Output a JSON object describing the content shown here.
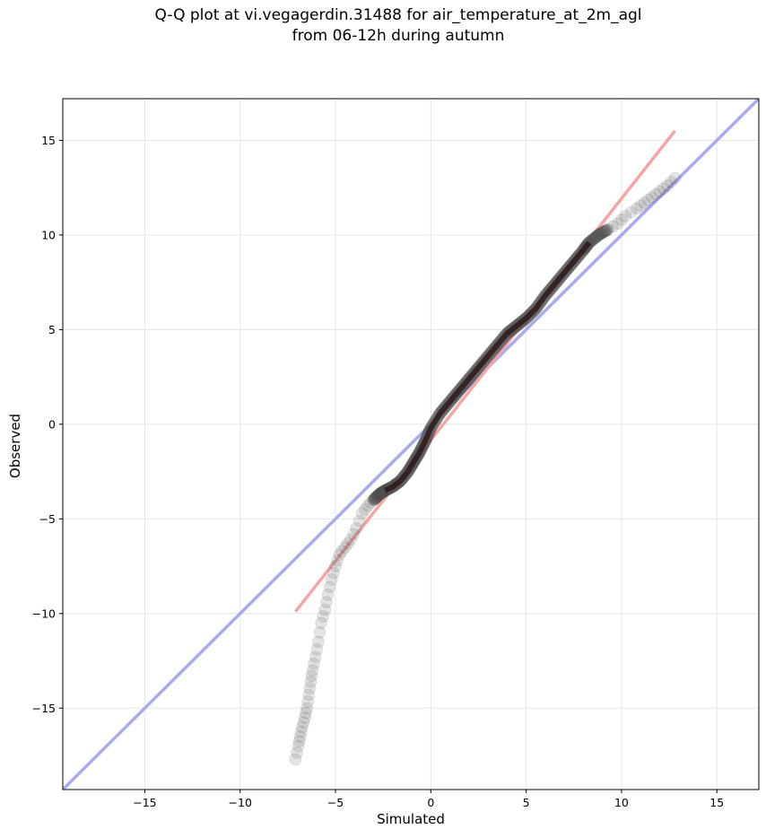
{
  "title_line1": "Q-Q plot at vi.vegagerdin.31488 for air_temperature_at_2m_agl",
  "title_line2": "from 06-12h during autumn",
  "chart_data": {
    "type": "scatter",
    "xlabel": "Simulated",
    "ylabel": "Observed",
    "xlim": [
      -19.3,
      17.2
    ],
    "ylim": [
      -19.3,
      17.2
    ],
    "xticks": [
      -15,
      -10,
      -5,
      0,
      5,
      10,
      15
    ],
    "yticks": [
      -15,
      -10,
      -5,
      0,
      5,
      10,
      15
    ],
    "xtick_labels": [
      "−15",
      "−10",
      "−5",
      "0",
      "5",
      "10",
      "15"
    ],
    "ytick_labels": [
      "−15",
      "−10",
      "−5",
      "0",
      "5",
      "10",
      "15"
    ],
    "grid": true,
    "reference_line": {
      "x": [
        -19.3,
        17.2
      ],
      "y": [
        -19.3,
        17.2
      ],
      "color": "#aaaaf2"
    },
    "fit_line": {
      "x": [
        -7.1,
        12.8
      ],
      "y": [
        -9.9,
        15.5
      ],
      "color": "#f4a6a6"
    },
    "quantile_curve": {
      "x": [
        -7.1,
        -6.95,
        -6.85,
        -6.75,
        -6.6,
        -6.5,
        -6.4,
        -6.3,
        -6.2,
        -6.05,
        -5.9,
        -5.75,
        -5.55,
        -5.4,
        -5.2,
        -5.0,
        -4.8,
        -4.5,
        -4.2,
        -3.9,
        -3.6,
        -3.3,
        -3.0,
        -2.7,
        -2.4,
        -2.0,
        -1.6,
        -1.2,
        -0.9,
        -0.6,
        -0.3,
        0.0,
        0.5,
        1.0,
        1.5,
        2.0,
        2.5,
        3.0,
        3.5,
        4.0,
        4.5,
        5.0,
        5.5,
        6.0,
        6.5,
        7.0,
        7.5,
        8.0,
        8.3,
        8.8,
        9.3,
        9.8,
        10.2,
        10.8,
        11.2,
        11.6,
        12.0,
        12.4,
        12.8
      ],
      "y": [
        -17.7,
        -17.0,
        -16.5,
        -16.0,
        -15.5,
        -15.0,
        -14.3,
        -13.6,
        -13.0,
        -12.3,
        -11.5,
        -10.5,
        -9.8,
        -9.0,
        -8.2,
        -7.5,
        -6.9,
        -6.5,
        -6.1,
        -5.5,
        -4.7,
        -4.3,
        -4.0,
        -3.7,
        -3.5,
        -3.3,
        -3.0,
        -2.5,
        -2.0,
        -1.5,
        -0.9,
        -0.2,
        0.6,
        1.2,
        1.8,
        2.4,
        3.0,
        3.6,
        4.2,
        4.8,
        5.2,
        5.6,
        6.1,
        6.8,
        7.4,
        8.0,
        8.6,
        9.2,
        9.6,
        10.0,
        10.3,
        10.6,
        11.0,
        11.4,
        11.7,
        12.0,
        12.3,
        12.6,
        13.0
      ]
    }
  }
}
